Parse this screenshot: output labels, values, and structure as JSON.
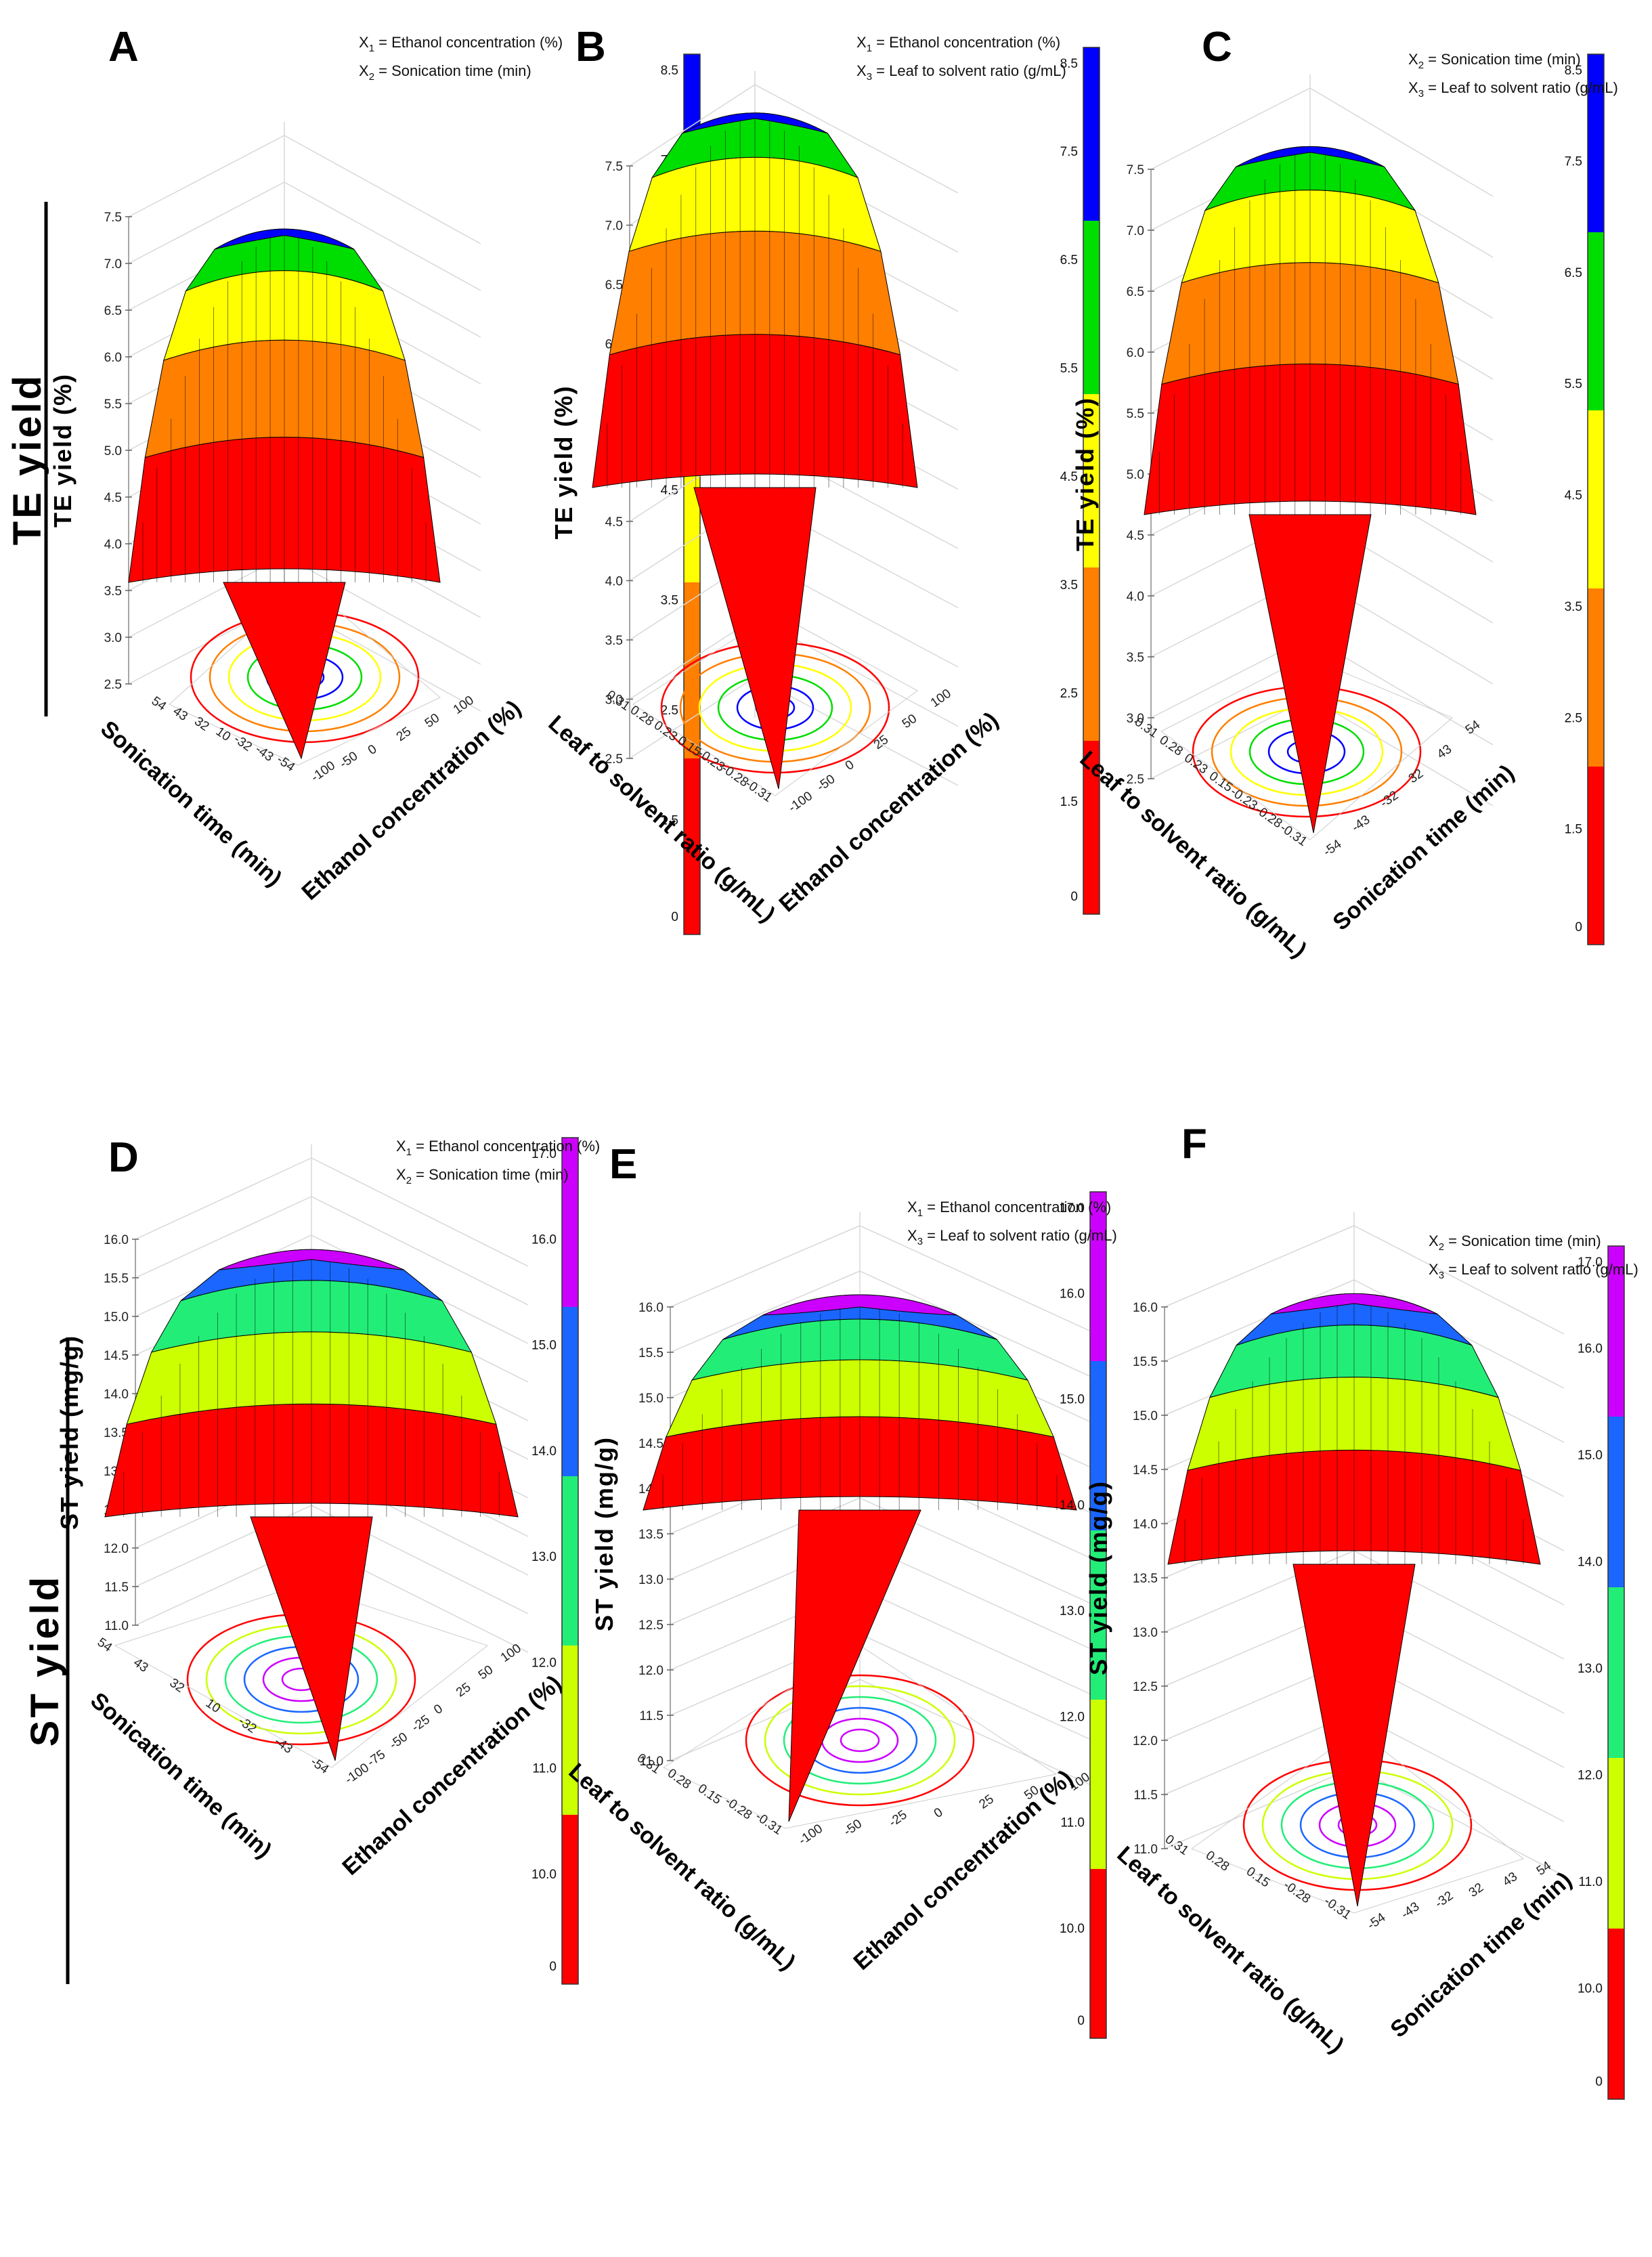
{
  "figure": {
    "row_titles": [
      "TE yield",
      "ST yield"
    ]
  },
  "chart_data": [
    {
      "panel": "A",
      "type": "surface",
      "title": "",
      "legend": [
        {
          "sub": "1",
          "text": "= Ethanol concentration (%)"
        },
        {
          "sub": "2",
          "text": "= Sonication time (min)"
        }
      ],
      "ylabel": "TE yield (%)",
      "y_ticks": [
        "2.5",
        "3.0",
        "3.5",
        "4.0",
        "4.5",
        "5.0",
        "5.5",
        "6.0",
        "6.5",
        "7.0",
        "7.5"
      ],
      "ylim": [
        2.5,
        7.5
      ],
      "x_label": "Ethanol concentration (%)",
      "x_ticks": [
        "-100",
        "-50",
        "0",
        "25",
        "50",
        "100"
      ],
      "z_label": "Sonication time (min)",
      "z_ticks": [
        "54",
        "43",
        "32",
        "10",
        "-32",
        "-43",
        "-54"
      ],
      "colorbar": {
        "ticks": [
          "0",
          "1.5",
          "2.5",
          "3.5",
          "4.5",
          "5.5",
          "6.5",
          "7.5",
          "8.5"
        ],
        "colors": [
          "#ff0000",
          "#ff7f00",
          "#ffff00",
          "#00dd00",
          "#0000ff"
        ]
      },
      "peak": 7.3
    },
    {
      "panel": "B",
      "type": "surface",
      "title": "",
      "legend": [
        {
          "sub": "1",
          "text": "= Ethanol concentration (%)"
        },
        {
          "sub": "3",
          "text": "= Leaf to solvent ratio (g/mL)"
        }
      ],
      "ylabel": "TE yield (%)",
      "y_ticks": [
        "2.5",
        "3.0",
        "3.5",
        "4.0",
        "4.5",
        "5.0",
        "5.5",
        "6.0",
        "6.5",
        "7.0",
        "7.5"
      ],
      "ylim": [
        2.5,
        7.5
      ],
      "x_label": "Ethanol concentration (%)",
      "x_ticks": [
        "-100",
        "-50",
        "0",
        "25",
        "50",
        "100"
      ],
      "z_label": "Leaf to solvent ratio (g/mL)",
      "z_ticks": [
        "0.31",
        "0.28",
        "0.23",
        "0.15",
        "-0.23",
        "-0.28",
        "-0.31"
      ],
      "colorbar": {
        "ticks": [
          "0",
          "1.5",
          "2.5",
          "3.5",
          "4.5",
          "5.5",
          "6.5",
          "7.5",
          "8.5"
        ],
        "colors": [
          "#ff0000",
          "#ff7f00",
          "#ffff00",
          "#00dd00",
          "#0000ff"
        ]
      },
      "peak": 7.9
    },
    {
      "panel": "C",
      "type": "surface",
      "title": "",
      "legend": [
        {
          "sub": "2",
          "text": "= Sonication time (min)"
        },
        {
          "sub": "3",
          "text": "= Leaf to solvent ratio (g/mL)"
        }
      ],
      "ylabel": "TE yield (%)",
      "y_ticks": [
        "2.5",
        "3.0",
        "3.5",
        "4.0",
        "4.5",
        "5.0",
        "5.5",
        "6.0",
        "6.5",
        "7.0",
        "7.5"
      ],
      "ylim": [
        2.5,
        7.5
      ],
      "x_label": "Sonication time (min)",
      "x_ticks": [
        "-54",
        "-43",
        "-32",
        "32",
        "43",
        "54"
      ],
      "z_label": "Leaf to solvent ratio (g/mL)",
      "z_ticks": [
        "0.31",
        "0.28",
        "0.23",
        "0.15",
        "-0.23",
        "-0.28",
        "-0.31"
      ],
      "colorbar": {
        "ticks": [
          "0",
          "1.5",
          "2.5",
          "3.5",
          "4.5",
          "5.5",
          "6.5",
          "7.5",
          "8.5"
        ],
        "colors": [
          "#ff0000",
          "#ff7f00",
          "#ffff00",
          "#00dd00",
          "#0000ff"
        ]
      },
      "peak": 7.8
    },
    {
      "panel": "D",
      "type": "surface",
      "title": "",
      "legend": [
        {
          "sub": "1",
          "text": "= Ethanol concentration (%)"
        },
        {
          "sub": "2",
          "text": "= Sonication time (min)"
        }
      ],
      "ylabel": "ST yield (mg/g)",
      "y_ticks": [
        "11.0",
        "11.5",
        "12.0",
        "12.5",
        "13.0",
        "13.5",
        "14.0",
        "14.5",
        "15.0",
        "15.5",
        "16.0"
      ],
      "ylim": [
        11.0,
        16.0
      ],
      "x_label": "Ethanol concentration (%)",
      "x_ticks": [
        "-100",
        "-75",
        "-50",
        "-25",
        "0",
        "25",
        "50",
        "100"
      ],
      "z_label": "Sonication time (min)",
      "z_ticks": [
        "54",
        "43",
        "32",
        "10",
        "-32",
        "-43",
        "-54"
      ],
      "colorbar": {
        "ticks": [
          "0",
          "10.0",
          "11.0",
          "12.0",
          "13.0",
          "14.0",
          "15.0",
          "16.0",
          "17.0"
        ],
        "colors": [
          "#ff0000",
          "#ccff00",
          "#22ee77",
          "#1a66ff",
          "#cc00ff"
        ]
      },
      "peak": 17.2
    },
    {
      "panel": "E",
      "type": "surface",
      "title": "",
      "legend": [
        {
          "sub": "1",
          "text": "= Ethanol concentration (%)"
        },
        {
          "sub": "3",
          "text": "= Leaf to solvent ratio (g/mL)"
        }
      ],
      "ylabel": "ST yield (mg/g)",
      "y_ticks": [
        "11.0",
        "11.5",
        "12.0",
        "12.5",
        "13.0",
        "13.5",
        "14.0",
        "14.5",
        "15.0",
        "15.5",
        "16.0"
      ],
      "ylim": [
        11.0,
        16.0
      ],
      "x_label": "Ethanol concentration (%)",
      "x_ticks": [
        "-100",
        "-50",
        "-25",
        "0",
        "25",
        "50",
        "100"
      ],
      "z_label": "Leaf to solvent ratio (g/mL)",
      "z_ticks": [
        "0.31",
        "0.28",
        "0.15",
        "-0.28",
        "-0.31"
      ],
      "colorbar": {
        "ticks": [
          "0",
          "10.0",
          "11.0",
          "12.0",
          "13.0",
          "14.0",
          "15.0",
          "16.0",
          "17.0"
        ],
        "colors": [
          "#ff0000",
          "#ccff00",
          "#22ee77",
          "#1a66ff",
          "#cc00ff"
        ]
      },
      "peak": 16.0
    },
    {
      "panel": "F",
      "type": "surface",
      "title": "",
      "legend": [
        {
          "sub": "2",
          "text": "= Sonication time (min)"
        },
        {
          "sub": "3",
          "text": "= Leaf to solvent ratio (g/mL)"
        }
      ],
      "ylabel": "ST yield (mg/g)",
      "y_ticks": [
        "11.0",
        "11.5",
        "12.0",
        "12.5",
        "13.0",
        "13.5",
        "14.0",
        "14.5",
        "15.0",
        "15.5",
        "16.0"
      ],
      "ylim": [
        11.0,
        16.0
      ],
      "x_label": "Sonication time (min)",
      "x_ticks": [
        "-54",
        "-43",
        "-32",
        "32",
        "43",
        "54"
      ],
      "z_label": "Leaf to solvent ratio (g/mL)",
      "z_ticks": [
        "0.31",
        "0.28",
        "0.15",
        "-0.28",
        "-0.31"
      ],
      "colorbar": {
        "ticks": [
          "0",
          "10.0",
          "11.0",
          "12.0",
          "13.0",
          "14.0",
          "15.0",
          "16.0",
          "17.0"
        ],
        "colors": [
          "#ff0000",
          "#ccff00",
          "#22ee77",
          "#1a66ff",
          "#cc00ff"
        ]
      },
      "peak": 16.1
    }
  ]
}
